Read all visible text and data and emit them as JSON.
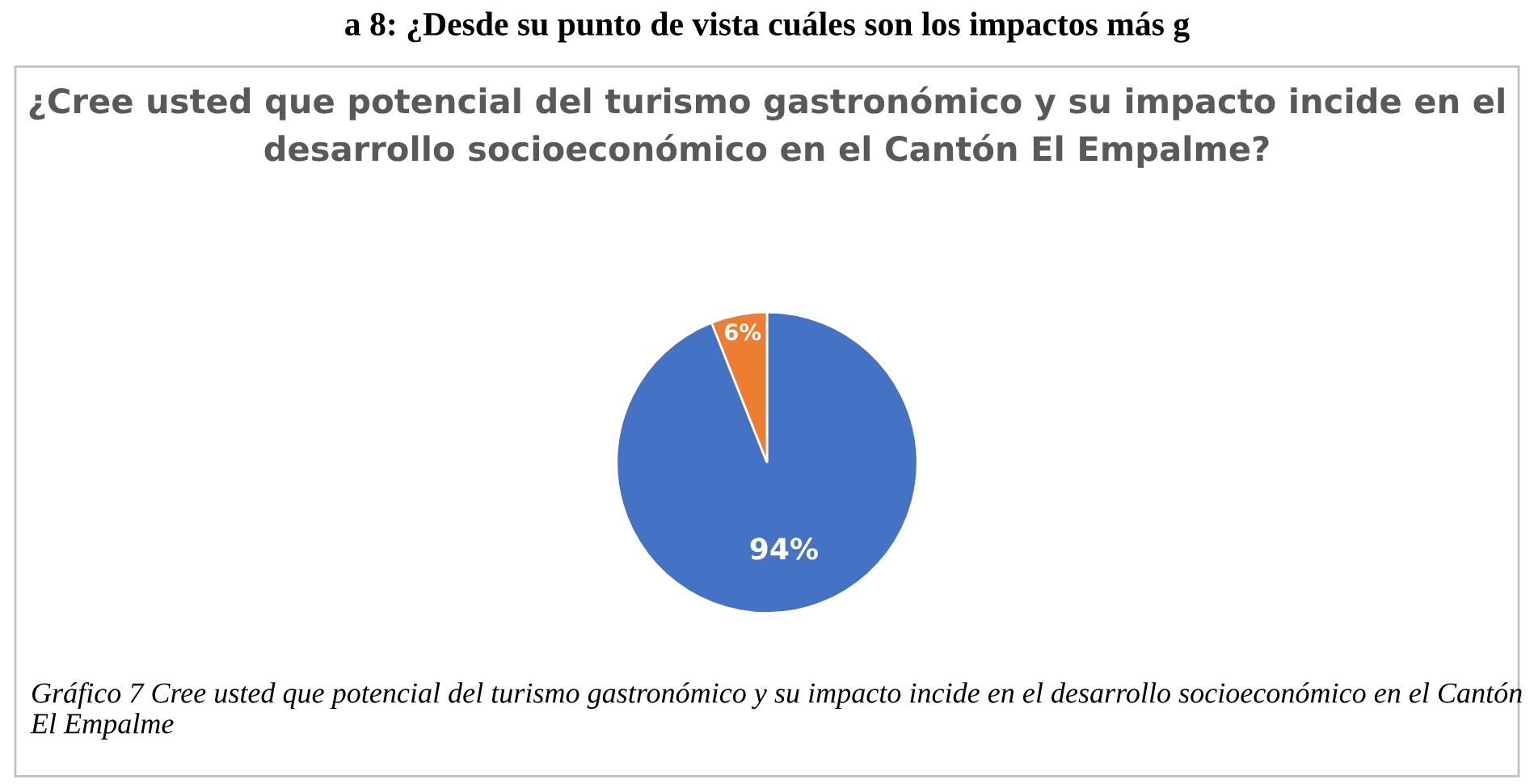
{
  "chart_data": {
    "type": "pie",
    "title": "¿Cree usted que potencial del turismo gastronómico y su impacto incide en el desarrollo socioeconómico en el Cantón El Empalme?",
    "categories": [
      null,
      null
    ],
    "values": [
      94,
      6
    ],
    "value_labels": [
      "94%",
      "6%"
    ],
    "colors": [
      "#4472c4",
      "#ed7d31"
    ],
    "legend": false,
    "annotations": [
      "a 8: ¿Desde su punto de vista cuáles son los impactos más g",
      "Gráfico 7 Cree usted que potencial del turismo gastronómico y su impacto incide en el desarrollo socioeconómico en el Cantón El Empalme"
    ]
  }
}
